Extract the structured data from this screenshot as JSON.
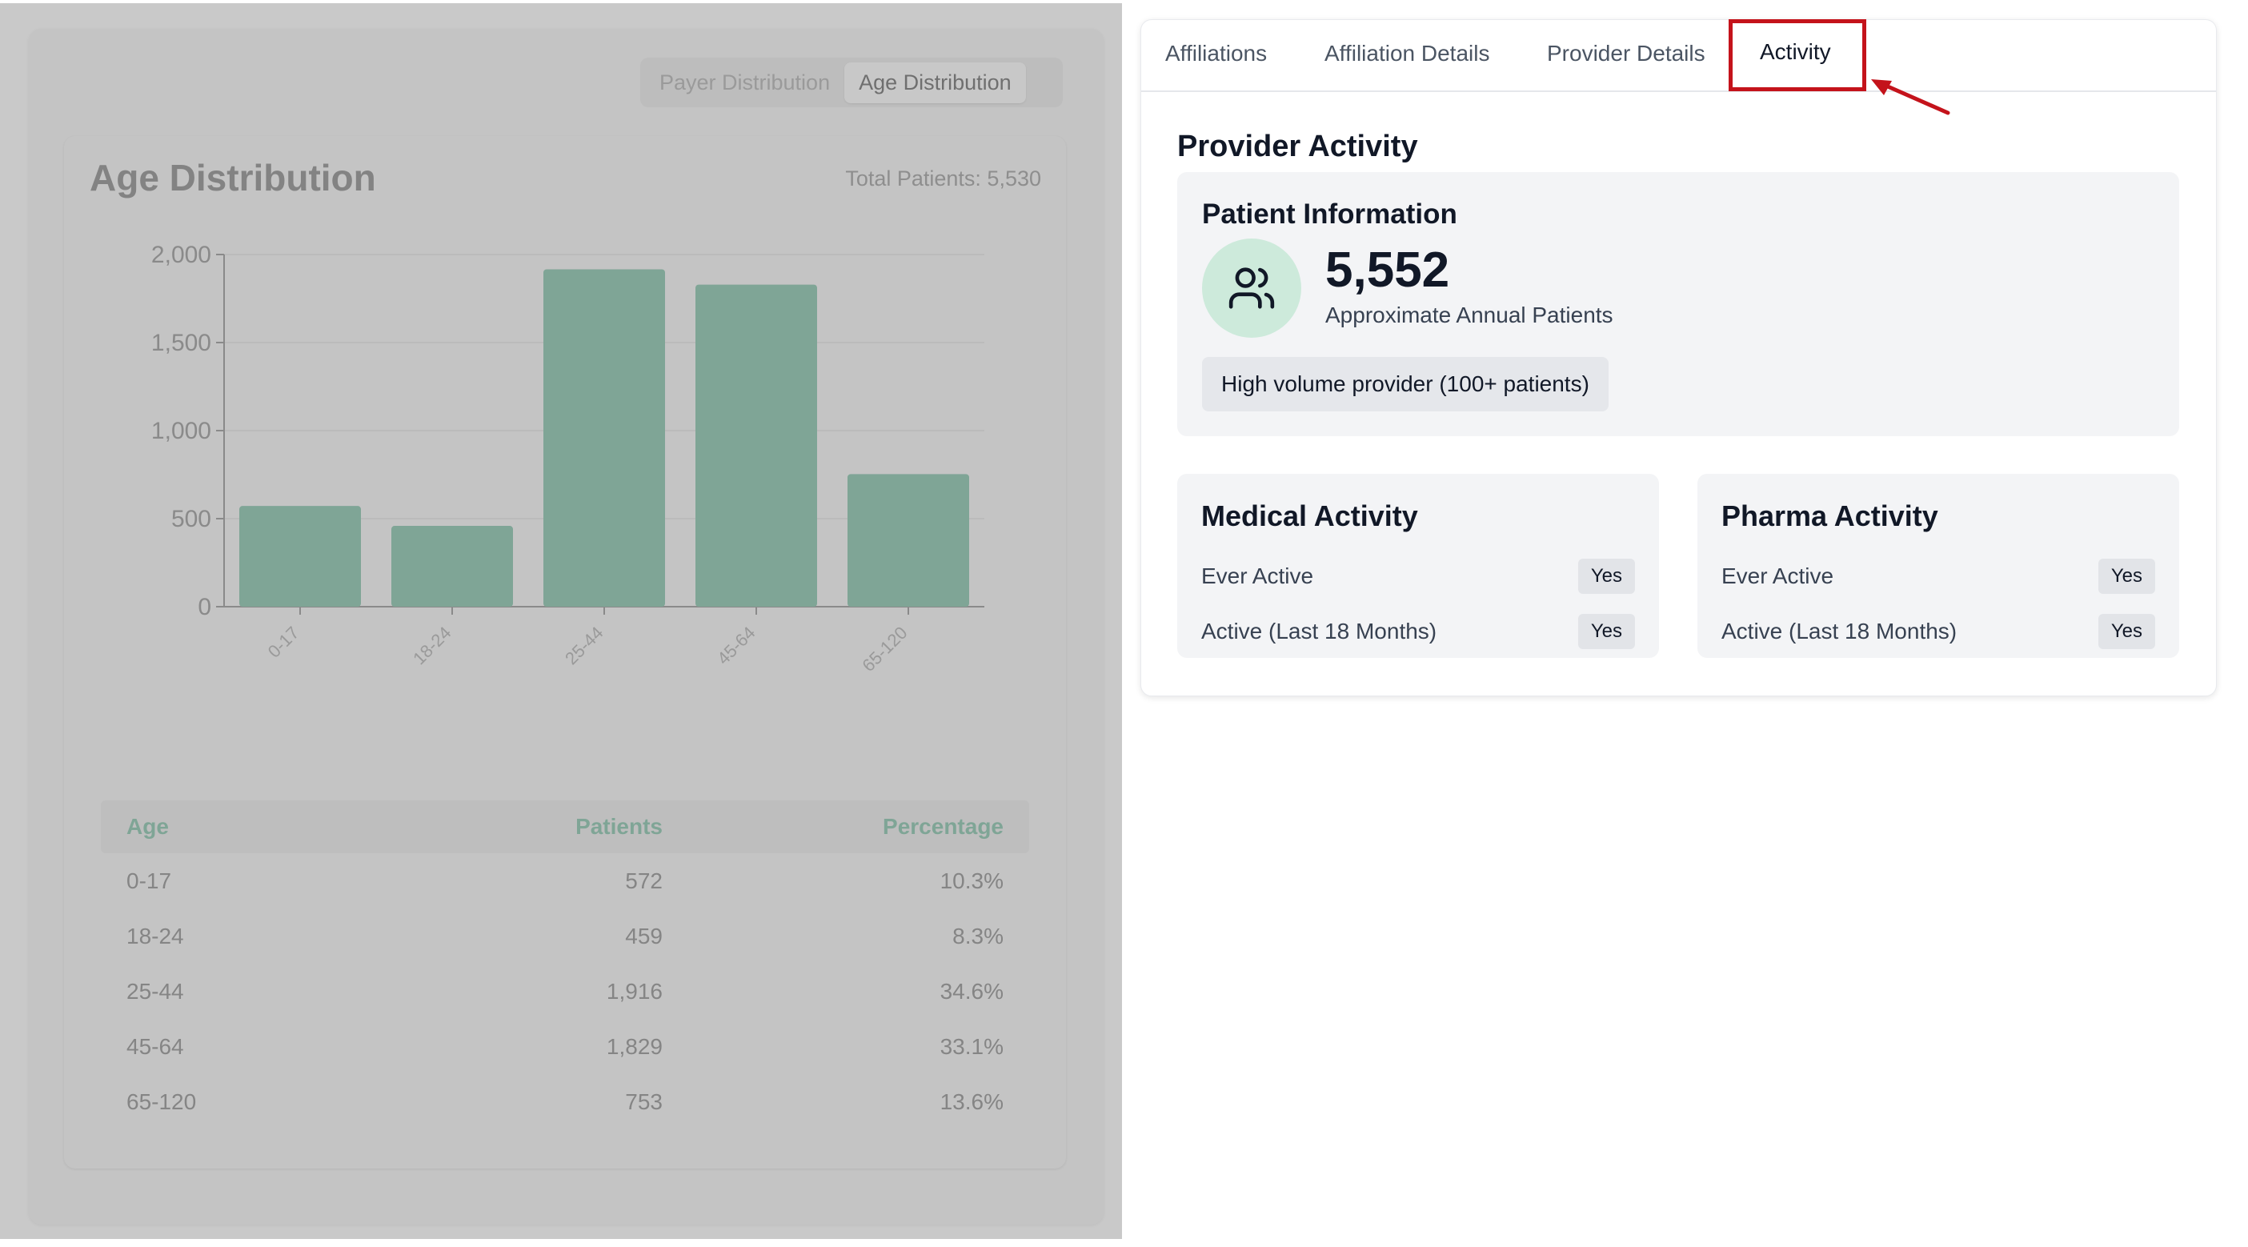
{
  "left": {
    "segments": [
      "Payer Distribution",
      "Age Distribution"
    ],
    "active_segment": "Age Distribution",
    "title": "Age Distribution",
    "total": "Total Patients: 5,530",
    "table": {
      "headers": [
        "Age",
        "Patients",
        "Percentage"
      ],
      "rows": [
        [
          "0-17",
          "572",
          "10.3%"
        ],
        [
          "18-24",
          "459",
          "8.3%"
        ],
        [
          "25-44",
          "1,916",
          "34.6%"
        ],
        [
          "45-64",
          "1,829",
          "33.1%"
        ],
        [
          "65-120",
          "753",
          "13.6%"
        ]
      ]
    }
  },
  "chart_data": {
    "type": "bar",
    "categories": [
      "0-17",
      "18-24",
      "25-44",
      "45-64",
      "65-120"
    ],
    "values": [
      572,
      459,
      1916,
      1829,
      753
    ],
    "yticks": [
      "0",
      "500",
      "1,000",
      "1,500",
      "2,000"
    ],
    "ylim": [
      0,
      2000
    ],
    "bar_color": "#7fa596",
    "grid": true
  },
  "tabs": {
    "items": [
      "Affiliations",
      "Affiliation Details",
      "Provider Details",
      "Activity"
    ],
    "active": "Activity"
  },
  "provider": {
    "title": "Provider Activity",
    "patient_info": {
      "title": "Patient Information",
      "icon": "users-icon",
      "count": "5,552",
      "subtitle": "Approximate Annual Patients",
      "badge": "High volume provider (100+ patients)"
    },
    "medical": {
      "title": "Medical Activity",
      "rows": [
        {
          "label": "Ever Active",
          "value": "Yes"
        },
        {
          "label": "Active (Last 18 Months)",
          "value": "Yes"
        }
      ]
    },
    "pharma": {
      "title": "Pharma Activity",
      "rows": [
        {
          "label": "Ever Active",
          "value": "Yes"
        },
        {
          "label": "Active (Last 18 Months)",
          "value": "Yes"
        }
      ]
    }
  },
  "colors": {
    "accent": "#c4131b",
    "icon_bg": "#cdeadb",
    "bar": "#7fa596"
  }
}
